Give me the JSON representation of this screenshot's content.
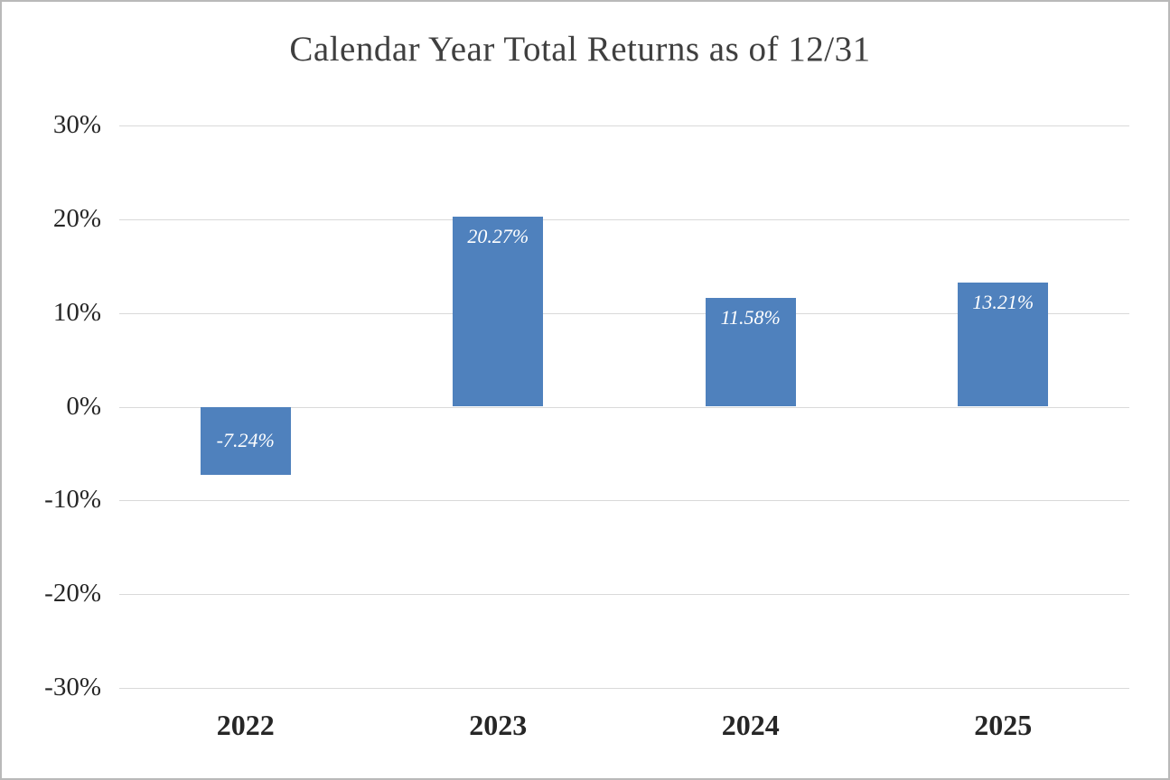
{
  "chart_data": {
    "type": "bar",
    "title": "Calendar Year Total Returns as of 12/31",
    "categories": [
      "2022",
      "2023",
      "2024",
      "2025"
    ],
    "values": [
      -7.24,
      20.27,
      11.58,
      13.21
    ],
    "value_labels": [
      "-7.24%",
      "20.27%",
      "11.58%",
      "13.21%"
    ],
    "y_ticks": [
      "30%",
      "20%",
      "10%",
      "0%",
      "-10%",
      "-20%",
      "-30%"
    ],
    "y_tick_values": [
      30,
      20,
      10,
      0,
      -10,
      -20,
      -30
    ],
    "ylim": [
      -30,
      30
    ],
    "xlabel": "",
    "ylabel": "",
    "grid": true,
    "legend_position": "none",
    "colors": {
      "bar": "#4f81bd",
      "bar_label_text": "#ffffff",
      "gridline": "#d9d9d9",
      "axis_text": "#262626",
      "title_text": "#3f3f3f"
    }
  }
}
